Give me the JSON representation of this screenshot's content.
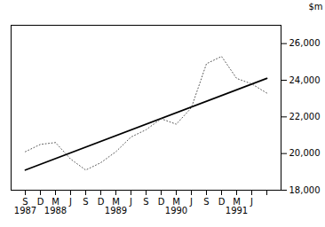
{
  "chart_data": {
    "type": "line",
    "categories": [
      "S\n1987",
      "D",
      "M\n1988",
      "J",
      "S",
      "D",
      "M\n1989",
      "J",
      "S",
      "D",
      "M\n1990",
      "J",
      "S",
      "D",
      "M\n1991",
      "J",
      null
    ],
    "series": [
      {
        "values": [
          20100,
          20500,
          20600,
          19700,
          19100,
          19500,
          20100,
          20900,
          21300,
          21900,
          21600,
          22500,
          24900,
          25300,
          24100,
          23800,
          23300
        ],
        "color": "#555555",
        "line_style": "dotted"
      }
    ],
    "trend": {
      "start": 19100,
      "end": 24100,
      "color": "#000000",
      "line_style": "solid"
    },
    "ylabel": "$m",
    "ylim": [
      18000,
      27000
    ],
    "yticks": [
      {
        "value": 18000,
        "label": "18,000"
      },
      {
        "value": 20000,
        "label": "20,000"
      },
      {
        "value": 22000,
        "label": "22,000"
      },
      {
        "value": 24000,
        "label": "24,000"
      },
      {
        "value": 26000,
        "label": "26,000"
      }
    ],
    "grid": false
  }
}
